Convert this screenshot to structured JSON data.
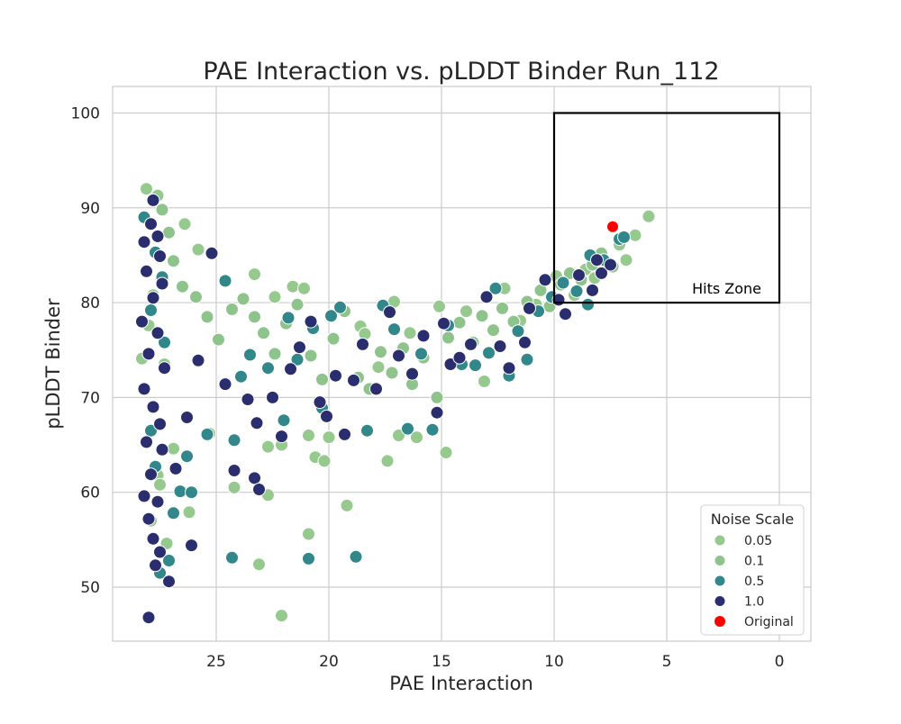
{
  "chart_data": {
    "type": "scatter",
    "title": "PAE Interaction vs. pLDDT Binder Run_112",
    "xlabel": "PAE Interaction",
    "ylabel": "pLDDT Binder",
    "x_inverted": true,
    "xlim": [
      29.6,
      -1.4
    ],
    "ylim": [
      44.3,
      102.8
    ],
    "x_ticks": [
      25,
      20,
      15,
      10,
      5,
      0
    ],
    "y_ticks": [
      50,
      60,
      70,
      80,
      90,
      100
    ],
    "grid": true,
    "legend": {
      "title": "Noise Scale",
      "placement": "lower-right",
      "entries": [
        {
          "label": "0.05",
          "color": "#95c98d"
        },
        {
          "label": "0.1",
          "color": "#8ec48c"
        },
        {
          "label": "0.5",
          "color": "#31878a"
        },
        {
          "label": "1.0",
          "color": "#2a2d6e"
        },
        {
          "label": "Original",
          "color": "#ff0000"
        }
      ]
    },
    "hits_zone": {
      "x_range": [
        10,
        0
      ],
      "y_range": [
        80,
        100
      ],
      "label": "Hits Zone"
    },
    "series": [
      {
        "name": "0.05",
        "color": "#95c98d",
        "points": [
          [
            28.1,
            92.0
          ],
          [
            27.6,
            91.3
          ],
          [
            26.4,
            88.3
          ],
          [
            25.8,
            85.6
          ],
          [
            27.8,
            80.8
          ],
          [
            28.0,
            77.6
          ],
          [
            27.3,
            73.5
          ],
          [
            28.3,
            74.1
          ],
          [
            27.9,
            57.0
          ],
          [
            27.6,
            61.8
          ],
          [
            27.5,
            60.8
          ],
          [
            27.2,
            54.6
          ],
          [
            26.9,
            64.6
          ],
          [
            26.2,
            57.9
          ],
          [
            25.3,
            66.2
          ],
          [
            24.2,
            60.5
          ],
          [
            23.3,
            83.0
          ],
          [
            22.7,
            64.8
          ],
          [
            22.7,
            59.7
          ],
          [
            23.1,
            52.4
          ],
          [
            22.4,
            80.6
          ],
          [
            22.1,
            65.0
          ],
          [
            22.1,
            47.0
          ],
          [
            21.6,
            81.7
          ],
          [
            21.1,
            81.5
          ],
          [
            20.9,
            66.0
          ],
          [
            20.9,
            55.6
          ],
          [
            20.6,
            63.7
          ],
          [
            20.2,
            63.3
          ],
          [
            20.0,
            65.8
          ],
          [
            19.2,
            58.6
          ],
          [
            18.6,
            77.5
          ],
          [
            18.4,
            76.7
          ],
          [
            17.8,
            73.2
          ],
          [
            17.6,
            79.7
          ],
          [
            17.4,
            63.3
          ],
          [
            17.1,
            80.1
          ],
          [
            16.9,
            66.0
          ],
          [
            16.4,
            76.8
          ],
          [
            16.1,
            65.8
          ],
          [
            15.1,
            79.6
          ],
          [
            14.8,
            64.2
          ],
          [
            13.9,
            79.1
          ],
          [
            13.1,
            71.7
          ],
          [
            12.2,
            81.5
          ],
          [
            11.5,
            78.1
          ],
          [
            10.8,
            79.8
          ],
          [
            9.9,
            82.8
          ],
          [
            9.1,
            80.8
          ],
          [
            8.6,
            83.5
          ],
          [
            7.6,
            84.1
          ],
          [
            6.8,
            84.5
          ],
          [
            6.4,
            87.1
          ],
          [
            5.8,
            89.1
          ],
          [
            7.1,
            86.1
          ],
          [
            8.2,
            82.6
          ]
        ]
      },
      {
        "name": "0.1",
        "color": "#8ec48c",
        "points": [
          [
            27.4,
            89.8
          ],
          [
            27.1,
            87.4
          ],
          [
            26.9,
            84.4
          ],
          [
            26.5,
            81.7
          ],
          [
            25.9,
            80.6
          ],
          [
            25.4,
            78.5
          ],
          [
            24.9,
            76.1
          ],
          [
            24.3,
            79.3
          ],
          [
            23.8,
            80.4
          ],
          [
            23.3,
            78.5
          ],
          [
            22.9,
            76.8
          ],
          [
            22.4,
            74.6
          ],
          [
            21.9,
            77.8
          ],
          [
            21.4,
            79.8
          ],
          [
            20.8,
            74.4
          ],
          [
            20.3,
            71.9
          ],
          [
            19.8,
            76.2
          ],
          [
            19.3,
            79.1
          ],
          [
            18.7,
            72.1
          ],
          [
            18.2,
            70.9
          ],
          [
            17.7,
            74.8
          ],
          [
            17.2,
            72.6
          ],
          [
            16.7,
            75.2
          ],
          [
            16.3,
            71.4
          ],
          [
            15.8,
            74.2
          ],
          [
            15.2,
            70.0
          ],
          [
            14.7,
            76.3
          ],
          [
            14.2,
            77.9
          ],
          [
            13.6,
            75.8
          ],
          [
            13.2,
            78.6
          ],
          [
            12.7,
            77.1
          ],
          [
            12.3,
            79.4
          ],
          [
            11.8,
            78.0
          ],
          [
            11.2,
            80.1
          ],
          [
            10.6,
            81.3
          ],
          [
            10.2,
            79.6
          ],
          [
            9.7,
            81.9
          ],
          [
            9.3,
            83.1
          ],
          [
            8.8,
            82.4
          ],
          [
            8.3,
            84.0
          ],
          [
            7.9,
            85.2
          ],
          [
            7.4,
            83.8
          ]
        ]
      },
      {
        "name": "0.5",
        "color": "#31878a",
        "points": [
          [
            28.2,
            89.0
          ],
          [
            27.7,
            85.3
          ],
          [
            27.4,
            82.7
          ],
          [
            27.9,
            79.2
          ],
          [
            27.3,
            75.8
          ],
          [
            27.9,
            66.5
          ],
          [
            27.7,
            62.7
          ],
          [
            27.5,
            51.5
          ],
          [
            27.1,
            52.8
          ],
          [
            26.9,
            57.8
          ],
          [
            26.6,
            60.1
          ],
          [
            26.3,
            63.8
          ],
          [
            26.1,
            60.0
          ],
          [
            25.4,
            66.1
          ],
          [
            24.6,
            82.3
          ],
          [
            24.2,
            65.5
          ],
          [
            24.3,
            53.1
          ],
          [
            23.9,
            72.2
          ],
          [
            23.5,
            74.5
          ],
          [
            22.7,
            73.1
          ],
          [
            22.0,
            67.6
          ],
          [
            21.8,
            78.4
          ],
          [
            21.4,
            74.0
          ],
          [
            20.9,
            53.0
          ],
          [
            20.7,
            77.3
          ],
          [
            20.3,
            68.9
          ],
          [
            19.9,
            78.6
          ],
          [
            19.5,
            79.5
          ],
          [
            18.8,
            53.2
          ],
          [
            18.3,
            66.5
          ],
          [
            17.6,
            79.7
          ],
          [
            17.1,
            77.2
          ],
          [
            16.5,
            66.7
          ],
          [
            15.9,
            74.6
          ],
          [
            15.4,
            66.6
          ],
          [
            14.7,
            77.6
          ],
          [
            14.1,
            73.5
          ],
          [
            13.5,
            73.4
          ],
          [
            12.9,
            74.7
          ],
          [
            12.6,
            81.5
          ],
          [
            12.0,
            72.3
          ],
          [
            11.6,
            77.0
          ],
          [
            11.2,
            74.0
          ],
          [
            10.7,
            79.1
          ],
          [
            10.1,
            80.6
          ],
          [
            9.6,
            82.1
          ],
          [
            9.0,
            81.2
          ],
          [
            8.5,
            79.8
          ],
          [
            8.4,
            85.0
          ],
          [
            7.8,
            84.5
          ],
          [
            7.1,
            86.7
          ],
          [
            6.9,
            86.9
          ]
        ]
      },
      {
        "name": "1.0",
        "color": "#2a2d6e",
        "points": [
          [
            27.8,
            90.8
          ],
          [
            27.9,
            88.3
          ],
          [
            27.6,
            87.0
          ],
          [
            28.2,
            86.4
          ],
          [
            27.5,
            84.9
          ],
          [
            28.1,
            83.3
          ],
          [
            27.4,
            82.0
          ],
          [
            27.8,
            80.5
          ],
          [
            28.3,
            78.0
          ],
          [
            27.6,
            76.8
          ],
          [
            28.0,
            74.6
          ],
          [
            27.3,
            73.1
          ],
          [
            28.2,
            70.9
          ],
          [
            27.8,
            69.0
          ],
          [
            27.5,
            67.2
          ],
          [
            28.1,
            65.3
          ],
          [
            27.4,
            64.5
          ],
          [
            27.9,
            61.9
          ],
          [
            28.2,
            59.6
          ],
          [
            27.6,
            59.0
          ],
          [
            28.0,
            57.2
          ],
          [
            27.8,
            55.1
          ],
          [
            27.5,
            53.7
          ],
          [
            27.7,
            52.3
          ],
          [
            27.1,
            50.6
          ],
          [
            28.0,
            46.8
          ],
          [
            26.8,
            62.5
          ],
          [
            26.3,
            67.9
          ],
          [
            26.1,
            54.4
          ],
          [
            25.8,
            73.9
          ],
          [
            25.2,
            85.2
          ],
          [
            24.6,
            71.4
          ],
          [
            24.2,
            62.3
          ],
          [
            23.6,
            69.8
          ],
          [
            23.3,
            61.5
          ],
          [
            23.1,
            60.3
          ],
          [
            23.2,
            67.3
          ],
          [
            22.5,
            70.0
          ],
          [
            22.1,
            65.9
          ],
          [
            21.7,
            73.0
          ],
          [
            21.3,
            75.3
          ],
          [
            20.8,
            78.0
          ],
          [
            20.4,
            69.5
          ],
          [
            20.1,
            68.0
          ],
          [
            19.7,
            72.3
          ],
          [
            19.3,
            66.1
          ],
          [
            18.9,
            71.8
          ],
          [
            18.5,
            75.6
          ],
          [
            17.9,
            70.9
          ],
          [
            17.3,
            79.0
          ],
          [
            16.9,
            74.4
          ],
          [
            16.3,
            72.5
          ],
          [
            15.8,
            76.5
          ],
          [
            15.2,
            68.4
          ],
          [
            14.9,
            77.8
          ],
          [
            14.6,
            73.5
          ],
          [
            14.2,
            74.2
          ],
          [
            13.7,
            75.6
          ],
          [
            13.0,
            80.6
          ],
          [
            12.4,
            75.4
          ],
          [
            12.0,
            73.1
          ],
          [
            11.3,
            75.8
          ],
          [
            11.1,
            79.4
          ],
          [
            10.4,
            82.4
          ],
          [
            9.8,
            80.3
          ],
          [
            9.5,
            78.8
          ],
          [
            8.9,
            82.9
          ],
          [
            8.3,
            81.3
          ],
          [
            7.9,
            83.1
          ],
          [
            7.5,
            84.0
          ],
          [
            8.1,
            84.5
          ]
        ]
      },
      {
        "name": "Original",
        "color": "#ff0000",
        "points": [
          [
            7.4,
            88.0
          ]
        ]
      }
    ]
  }
}
